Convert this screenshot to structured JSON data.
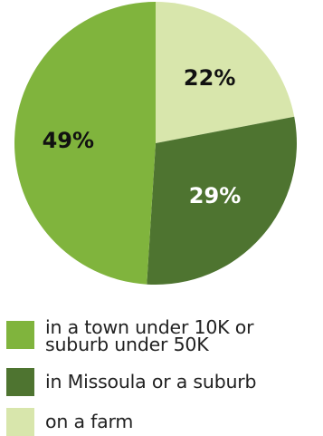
{
  "chart_data": {
    "type": "pie",
    "slices": [
      {
        "label": "on a farm",
        "value": 22,
        "display": "22%",
        "color": "#d8e6ac",
        "label_color": "#111111"
      },
      {
        "label": "in Missoula or a suburb",
        "value": 29,
        "display": "29%",
        "color": "#4e7430",
        "label_color": "#ffffff"
      },
      {
        "label": "in a town under 10K or suburb under 50K",
        "value": 49,
        "display": "49%",
        "color": "#80b43d",
        "label_color": "#111111"
      }
    ],
    "start": "12 o'clock",
    "direction": "clockwise",
    "legend": {
      "placement": "bottom",
      "items": [
        {
          "label": "in a town under 10K or\nsuburb under 50K",
          "color": "#80b43d"
        },
        {
          "label": "in Missoula or a suburb",
          "color": "#4e7430"
        },
        {
          "label": "on a farm",
          "color": "#d8e6ac"
        }
      ]
    }
  }
}
